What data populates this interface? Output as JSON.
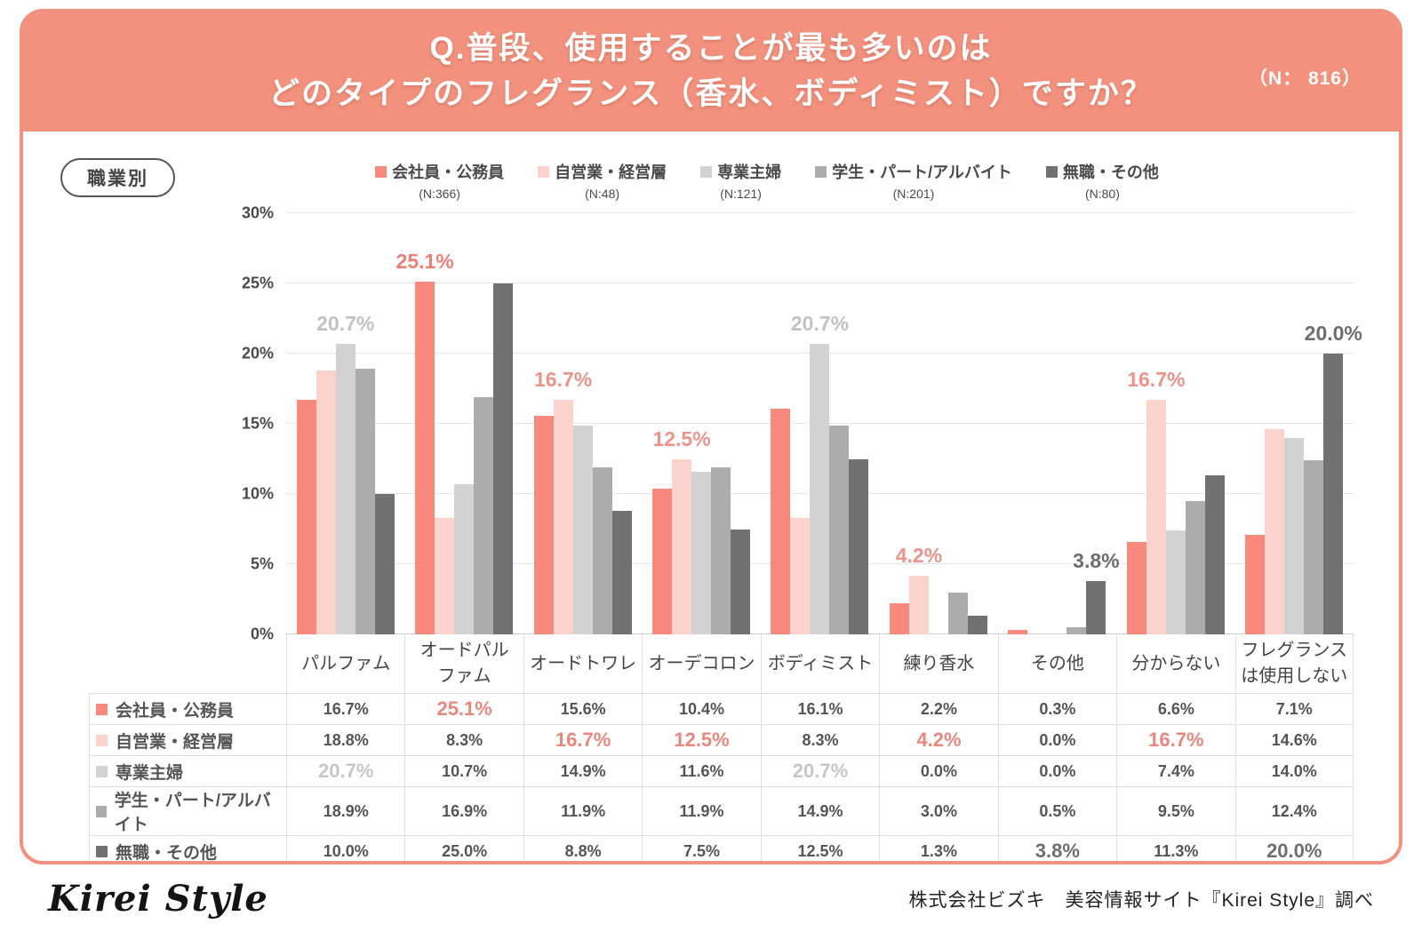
{
  "header": {
    "title_line1": "Q.普段、使用することが最も多いのは",
    "title_line2": "どのタイプのフレグランス（香水、ボディミスト）ですか？",
    "sample_note": "（N： 816）"
  },
  "badge_label": "職業別",
  "legend": {
    "items": [
      {
        "label": "会社員・公務員",
        "n_label": "(N:366)",
        "color": "#F9897D"
      },
      {
        "label": "自営業・経営層",
        "n_label": "(N:48)",
        "color": "#FBD3CC"
      },
      {
        "label": "専業主婦",
        "n_label": "(N:121)",
        "color": "#D2D2D2"
      },
      {
        "label": "学生・パート/アルバイト",
        "n_label": "(N:201)",
        "color": "#ACACAC"
      },
      {
        "label": "無職・その他",
        "n_label": "(N:80)",
        "color": "#717171"
      }
    ]
  },
  "chart_data": {
    "type": "bar",
    "title": "Q.普段、使用することが最も多いのはどのタイプのフレグランス（香水、ボディミスト）ですか？",
    "categories": [
      "パルファム",
      "オードパル\nファム",
      "オードトワレ",
      "オーデコロン",
      "ボディミスト",
      "練り香水",
      "その他",
      "分からない",
      "フレグランス\nは使用しない"
    ],
    "series": [
      {
        "name": "会社員・公務員",
        "n": 366,
        "color": "#F9897D",
        "values": [
          16.7,
          25.1,
          15.6,
          10.4,
          16.1,
          2.2,
          0.3,
          6.6,
          7.1
        ]
      },
      {
        "name": "自営業・経営層",
        "n": 48,
        "color": "#FBD3CC",
        "values": [
          18.8,
          8.3,
          16.7,
          12.5,
          8.3,
          4.2,
          0.0,
          16.7,
          14.6
        ]
      },
      {
        "name": "専業主婦",
        "n": 121,
        "color": "#D2D2D2",
        "values": [
          20.7,
          10.7,
          14.9,
          11.6,
          20.7,
          0.0,
          0.0,
          7.4,
          14.0
        ]
      },
      {
        "name": "学生・パート/アルバイト",
        "n": 201,
        "color": "#ACACAC",
        "values": [
          18.9,
          16.9,
          11.9,
          11.9,
          14.9,
          3.0,
          0.5,
          9.5,
          12.4
        ]
      },
      {
        "name": "無職・その他",
        "n": 80,
        "color": "#717171",
        "values": [
          10.0,
          25.0,
          8.8,
          7.5,
          12.5,
          1.3,
          3.8,
          11.3,
          20.0
        ]
      }
    ],
    "xlabel": "",
    "ylabel": "",
    "ylim": [
      0,
      30
    ],
    "grid": true,
    "legend_position": "top",
    "yticks": [
      {
        "value": 30,
        "label": "30%"
      },
      {
        "value": 25,
        "label": "25%"
      },
      {
        "value": 20,
        "label": "20%"
      },
      {
        "value": 15,
        "label": "15%"
      },
      {
        "value": 10,
        "label": "10%"
      },
      {
        "value": 5,
        "label": "5%"
      },
      {
        "value": 0,
        "label": "0%"
      }
    ],
    "callouts": [
      {
        "category": 0,
        "series": 2,
        "text": "20.7%",
        "style": "gray"
      },
      {
        "category": 1,
        "series": 0,
        "text": "25.1%",
        "style": "salmon"
      },
      {
        "category": 2,
        "series": 1,
        "text": "16.7%",
        "style": "pink"
      },
      {
        "category": 3,
        "series": 1,
        "text": "12.5%",
        "style": "pink"
      },
      {
        "category": 4,
        "series": 2,
        "text": "20.7%",
        "style": "gray"
      },
      {
        "category": 5,
        "series": 1,
        "text": "4.2%",
        "style": "pink"
      },
      {
        "category": 6,
        "series": 4,
        "text": "3.8%",
        "style": "dark"
      },
      {
        "category": 7,
        "series": 1,
        "text": "16.7%",
        "style": "pink"
      },
      {
        "category": 8,
        "series": 4,
        "text": "20.0%",
        "style": "dark"
      }
    ]
  },
  "table": {
    "highlights": [
      {
        "row": 0,
        "col": 1,
        "style": "salmon"
      },
      {
        "row": 1,
        "col": 2,
        "style": "salmon"
      },
      {
        "row": 1,
        "col": 3,
        "style": "salmon"
      },
      {
        "row": 1,
        "col": 5,
        "style": "salmon"
      },
      {
        "row": 1,
        "col": 7,
        "style": "salmon"
      },
      {
        "row": 2,
        "col": 0,
        "style": "gray"
      },
      {
        "row": 2,
        "col": 4,
        "style": "gray"
      },
      {
        "row": 4,
        "col": 6,
        "style": "dark"
      },
      {
        "row": 4,
        "col": 8,
        "style": "dark"
      }
    ]
  },
  "colors": {
    "accent": "#F2917E",
    "callout_salmon": "#ED7F76",
    "callout_pink": "#EC938B",
    "callout_gray": "#C2C2C2",
    "callout_dark": "#6E6E6E"
  },
  "footer": {
    "logo_text": "Kirei Style",
    "source_text": "株式会社ビズキ　美容情報サイト『Kirei Style』調べ"
  }
}
